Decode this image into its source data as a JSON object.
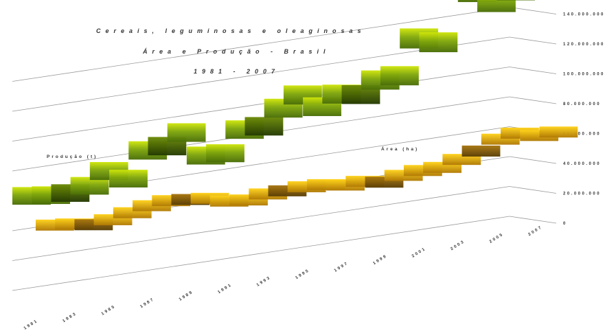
{
  "chart_data": {
    "type": "bar",
    "title": "Cereais, leguminosas e oleaginosas",
    "subtitle": "Área e Produção - Brasil",
    "period": "1981 - 2007",
    "x": [
      1981,
      1982,
      1983,
      1984,
      1985,
      1986,
      1987,
      1988,
      1989,
      1990,
      1991,
      1992,
      1993,
      1994,
      1995,
      1996,
      1997,
      1998,
      1999,
      2000,
      2001,
      2002,
      2003,
      2004,
      2005,
      2006,
      2007
    ],
    "x_tick_labels": [
      "1981",
      "1983",
      "1985",
      "1987",
      "1989",
      "1991",
      "1993",
      "1995",
      "1997",
      "1999",
      "2001",
      "2003",
      "2005",
      "2007"
    ],
    "y_tick_labels": [
      "0",
      "20.000.000",
      "40.000.000",
      "60.000.000",
      "80.000.000",
      "100.000.000",
      "120.000.000",
      "140.000.000"
    ],
    "ylim": [
      0,
      140000000
    ],
    "series": [
      {
        "name": "Produção (t)",
        "values": [
          52000000,
          50800000,
          50300000,
          52400000,
          58300000,
          52900000,
          65600000,
          66200000,
          71500000,
          58300000,
          57900000,
          68300000,
          68400000,
          76000000,
          81100000,
          73600000,
          78400000,
          76600000,
          82400000,
          83000000,
          100300000,
          96800000,
          123600000,
          119300000,
          112600000,
          117000000,
          133000000
        ]
      },
      {
        "name": "Área (ha)",
        "values": [
          40000000,
          39000000,
          37000000,
          38000000,
          40000000,
          42000000,
          43000000,
          42000000,
          41000000,
          38000000,
          37000000,
          38500000,
          38500000,
          39000000,
          38500000,
          36700000,
          37000000,
          35000000,
          36900000,
          37800000,
          37800000,
          40300000,
          43000000,
          47500000,
          49000000,
          46200000,
          46400000
        ]
      }
    ]
  }
}
